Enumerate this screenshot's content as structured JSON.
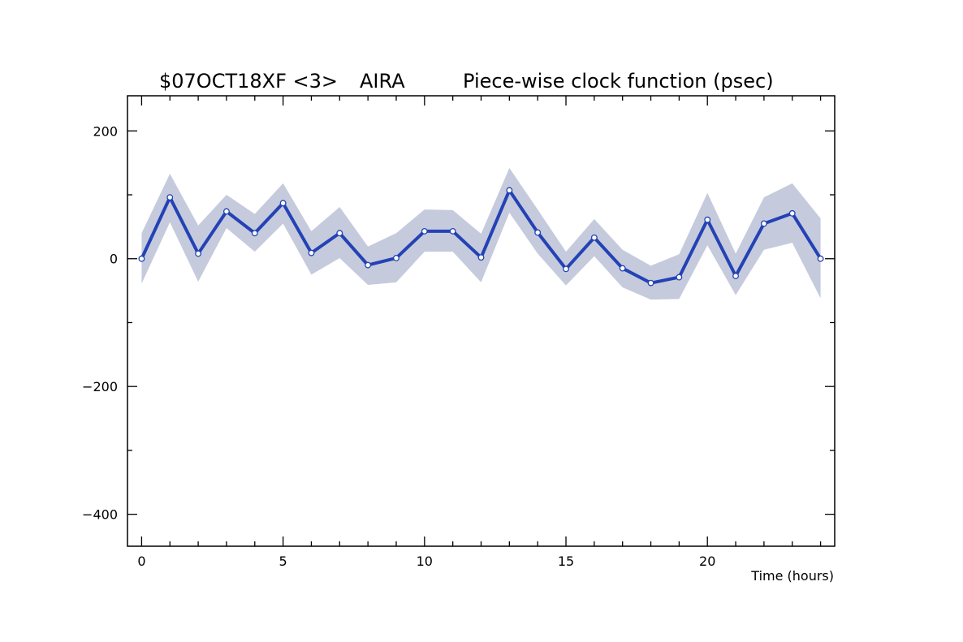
{
  "title": {
    "experiment": "$07OCT18XF <3>",
    "station": "AIRA",
    "description": "Piece-wise clock function (psec)"
  },
  "chart_data": {
    "type": "line",
    "title": "$07OCT18XF <3>  AIRA      Piece-wise clock function (psec)",
    "xlabel": "Time (hours)",
    "ylabel": "",
    "xlim": [
      -0.5,
      24.5
    ],
    "ylim": [
      -450,
      255
    ],
    "x_ticks": [
      0,
      5,
      10,
      15,
      20
    ],
    "x_tick_labels": [
      "0",
      "5",
      "10",
      "15",
      "20"
    ],
    "y_ticks": [
      -400,
      -200,
      0,
      200
    ],
    "y_tick_labels": [
      "−400",
      "−200",
      "0",
      "200"
    ],
    "grid": false,
    "x": [
      0,
      1,
      2,
      3,
      4,
      5,
      6,
      7,
      8,
      9,
      10,
      11,
      12,
      13,
      14,
      15,
      16,
      17,
      18,
      19,
      20,
      21,
      22,
      23,
      24
    ],
    "series": [
      {
        "values": [
          0,
          96,
          8,
          74,
          40,
          87,
          9,
          40,
          -10,
          1,
          43,
          43,
          2,
          107,
          41,
          -16,
          33,
          -15,
          -38,
          -29,
          61,
          -27,
          55,
          71,
          0
        ],
        "upper": [
          40,
          133,
          52,
          100,
          70,
          118,
          43,
          81,
          19,
          40,
          77,
          76,
          39,
          142,
          77,
          11,
          62,
          14,
          -11,
          7,
          103,
          8,
          96,
          118,
          63
        ],
        "lower": [
          -39,
          57,
          -36,
          48,
          11,
          55,
          -25,
          1,
          -41,
          -37,
          11,
          11,
          -37,
          72,
          8,
          -42,
          4,
          -45,
          -64,
          -63,
          21,
          -57,
          14,
          25,
          -62
        ]
      }
    ],
    "colors": {
      "line": "#2442b5",
      "band": "#c5cbdc",
      "marker_fill": "#ffffff"
    }
  }
}
